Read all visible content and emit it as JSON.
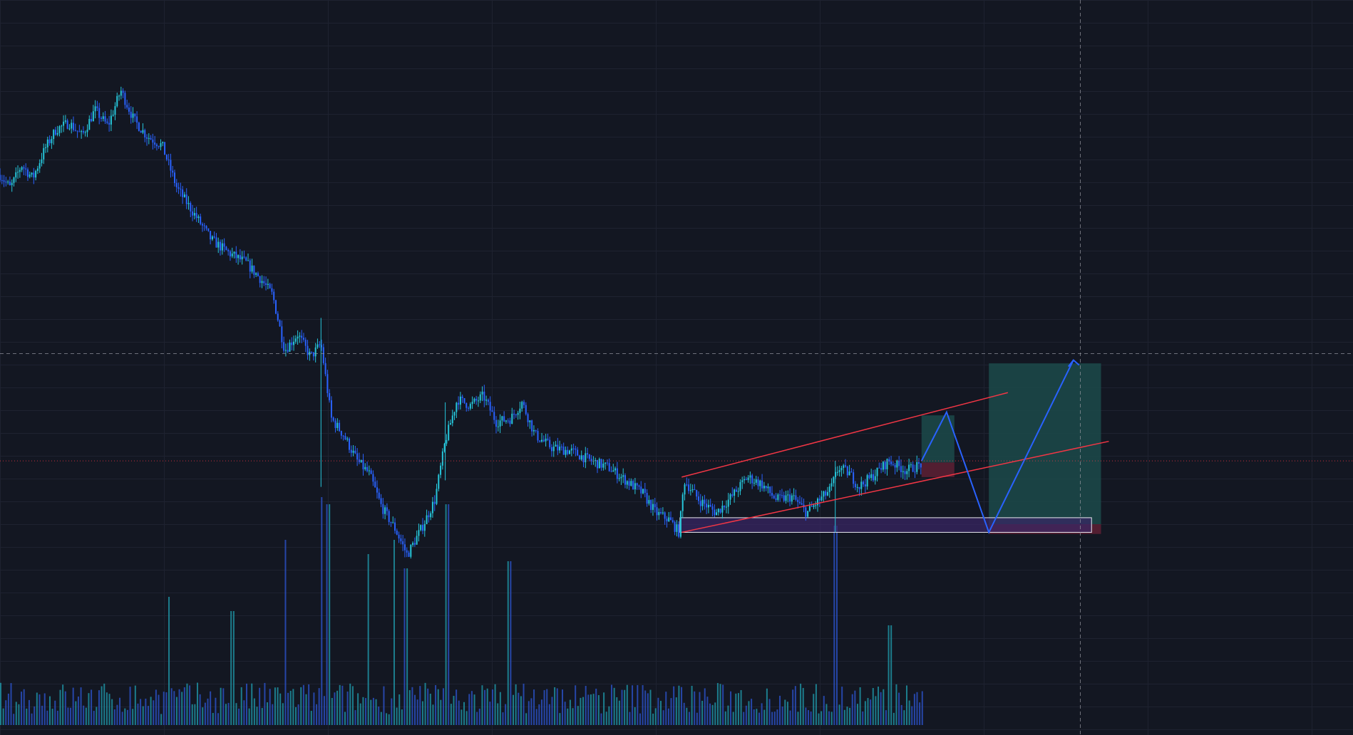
{
  "colors": {
    "background": "#131722",
    "grid": "#1e2230",
    "candle_up": "#26c6da",
    "candle_down": "#2962ff",
    "volume_up": "#1f8fa0",
    "volume_down": "#2a4fc0",
    "channel_line": "#f23645",
    "projection": "#2962ff",
    "zone_border": "#e8e8f0",
    "zone_fill": "#3a2766",
    "profit_fill": "#1c4a4a",
    "loss_fill": "#5a1f33",
    "crosshair": "#9598a1",
    "current_price_line": "#f23645"
  },
  "chart_data": {
    "type": "candlestick",
    "title": "",
    "xlabel": "",
    "ylabel": "",
    "grid": true,
    "price_range": [
      45,
      210
    ],
    "candle_count": 470,
    "price_path": [
      [
        0,
        172
      ],
      [
        12,
        168
      ],
      [
        25,
        175
      ],
      [
        38,
        171
      ],
      [
        52,
        180
      ],
      [
        65,
        186
      ],
      [
        80,
        188
      ],
      [
        95,
        184
      ],
      [
        110,
        192
      ],
      [
        125,
        187
      ],
      [
        140,
        198
      ],
      [
        155,
        189
      ],
      [
        170,
        184
      ],
      [
        188,
        181
      ],
      [
        205,
        168
      ],
      [
        225,
        160
      ],
      [
        245,
        152
      ],
      [
        265,
        148
      ],
      [
        285,
        145
      ],
      [
        302,
        140
      ],
      [
        316,
        135
      ],
      [
        330,
        118
      ],
      [
        345,
        123
      ],
      [
        360,
        116
      ],
      [
        372,
        120
      ],
      [
        384,
        97
      ],
      [
        398,
        92
      ],
      [
        414,
        84
      ],
      [
        428,
        80
      ],
      [
        442,
        70
      ],
      [
        458,
        63
      ],
      [
        472,
        55
      ],
      [
        490,
        64
      ],
      [
        504,
        72
      ],
      [
        516,
        90
      ],
      [
        530,
        103
      ],
      [
        545,
        101
      ],
      [
        560,
        104
      ],
      [
        575,
        96
      ],
      [
        592,
        97
      ],
      [
        605,
        102
      ],
      [
        620,
        92
      ],
      [
        640,
        88
      ],
      [
        662,
        87
      ],
      [
        685,
        84
      ],
      [
        705,
        82
      ],
      [
        725,
        78
      ],
      [
        745,
        74
      ],
      [
        760,
        68
      ],
      [
        775,
        66
      ],
      [
        787,
        62
      ],
      [
        793,
        78
      ],
      [
        810,
        72
      ],
      [
        830,
        68
      ],
      [
        848,
        73
      ],
      [
        866,
        79
      ],
      [
        882,
        77
      ],
      [
        900,
        72
      ],
      [
        918,
        73
      ],
      [
        935,
        68
      ],
      [
        950,
        72
      ],
      [
        962,
        75
      ],
      [
        972,
        82
      ],
      [
        985,
        80
      ],
      [
        995,
        76
      ],
      [
        1010,
        79
      ],
      [
        1030,
        84
      ],
      [
        1050,
        81
      ],
      [
        1068,
        83
      ]
    ],
    "volume_spikes": [
      [
        195,
        0.9
      ],
      [
        268,
        0.8
      ],
      [
        330,
        1.3
      ],
      [
        372,
        1.6
      ],
      [
        380,
        1.55
      ],
      [
        426,
        1.2
      ],
      [
        456,
        1.3
      ],
      [
        470,
        1.1
      ],
      [
        517,
        1.55
      ],
      [
        590,
        1.15
      ],
      [
        968,
        1.4
      ],
      [
        1030,
        0.7
      ]
    ],
    "channel": {
      "upper": [
        [
          790,
          79
        ],
        [
          1168,
          105
        ]
      ],
      "lower": [
        [
          790,
          62
        ],
        [
          1285,
          90
        ]
      ]
    },
    "zone": {
      "x": [
        788,
        1265
      ],
      "price": [
        62,
        66.5
      ]
    },
    "position": {
      "x": [
        1146,
        1276
      ],
      "entry": 64.5,
      "target": 114,
      "stop": 61.5
    },
    "projection_path": [
      [
        1068,
        84
      ],
      [
        1097,
        99
      ],
      [
        1146,
        62
      ],
      [
        1244,
        115
      ]
    ],
    "small_position": {
      "x": [
        1068,
        1106
      ],
      "entry": 83.5,
      "target": 98,
      "stop": 79
    },
    "current_price": 84,
    "crosshair": {
      "x": 1252,
      "price": 117
    }
  }
}
